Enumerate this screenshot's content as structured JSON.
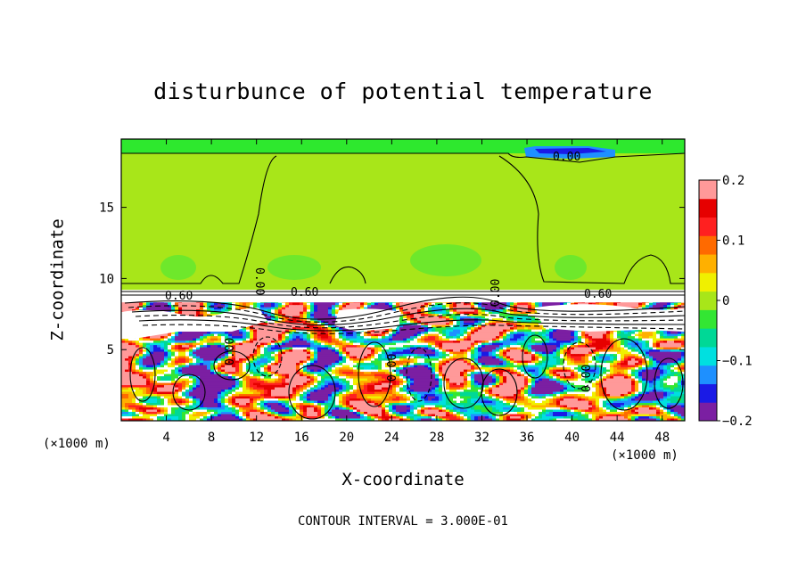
{
  "chart_data": {
    "type": "heatmap",
    "title": "disturbunce of potential temperature",
    "xlabel": "X-coordinate",
    "ylabel": "Z-coordinate",
    "x_unit_left": "(×1000 m)",
    "x_unit_right": "(×1000 m)",
    "footer": "CONTOUR INTERVAL = 3.000E-01",
    "xlim": [
      0,
      50
    ],
    "ylim": [
      0,
      19.8
    ],
    "x_ticks": [
      4,
      8,
      12,
      16,
      20,
      24,
      28,
      32,
      36,
      40,
      44,
      48
    ],
    "y_ticks": [
      5,
      10,
      15
    ],
    "colorbar": {
      "min": -0.2,
      "max": 0.2,
      "ticks": [
        "0.2",
        "0.1",
        "0",
        "−0.1",
        "−0.2"
      ],
      "tick_values": [
        0.2,
        0.1,
        0,
        -0.1,
        -0.2
      ],
      "colors": [
        "#7b1fa2",
        "#1a1ae6",
        "#1e90ff",
        "#00e0e0",
        "#00d896",
        "#33e633",
        "#a8e619",
        "#f0f000",
        "#ffb000",
        "#ff6a00",
        "#ff2020",
        "#e60000",
        "#ff9999"
      ]
    },
    "contour_labels": [
      "0.00",
      "0.00",
      "0.60",
      "0.60",
      "0.60",
      "0.00",
      "0.00",
      "0.00",
      "0.00"
    ],
    "inversion_layer_z": 9.2,
    "upper_region_value": 0.0
  }
}
